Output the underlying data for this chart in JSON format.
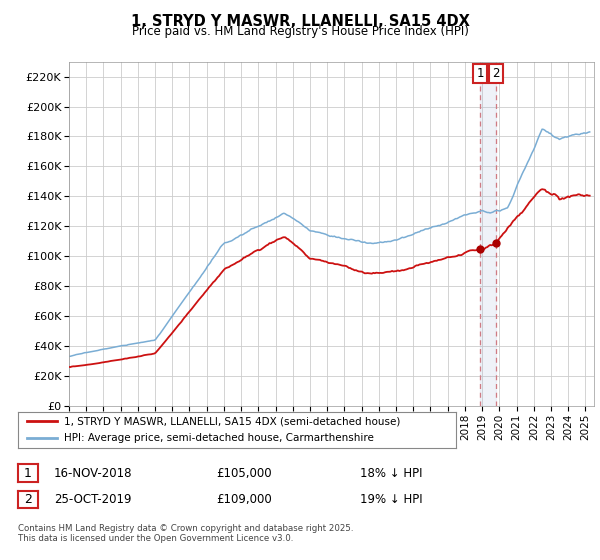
{
  "title": "1, STRYD Y MASWR, LLANELLI, SA15 4DX",
  "subtitle": "Price paid vs. HM Land Registry's House Price Index (HPI)",
  "ylabel_ticks": [
    "£0",
    "£20K",
    "£40K",
    "£60K",
    "£80K",
    "£100K",
    "£120K",
    "£140K",
    "£160K",
    "£180K",
    "£200K",
    "£220K"
  ],
  "ytick_values": [
    0,
    20000,
    40000,
    60000,
    80000,
    100000,
    120000,
    140000,
    160000,
    180000,
    200000,
    220000
  ],
  "ylim": [
    0,
    230000
  ],
  "xlim_start": 1995.0,
  "xlim_end": 2025.5,
  "xtick_years": [
    1995,
    1996,
    1997,
    1998,
    1999,
    2000,
    2001,
    2002,
    2003,
    2004,
    2005,
    2006,
    2007,
    2008,
    2009,
    2010,
    2011,
    2012,
    2013,
    2014,
    2015,
    2016,
    2017,
    2018,
    2019,
    2020,
    2021,
    2022,
    2023,
    2024,
    2025
  ],
  "hpi_color": "#7aadd4",
  "price_color": "#cc1111",
  "marker_color": "#aa0000",
  "vline_color": "#dd6666",
  "span_color": "#ddcccc",
  "annotation_box_color": "#cc2222",
  "background_color": "#ffffff",
  "grid_color": "#cccccc",
  "transaction1_x": 2018.88,
  "transaction1_y": 105000,
  "transaction2_x": 2019.81,
  "transaction2_y": 109000,
  "legend_text1": "1, STRYD Y MASWR, LLANELLI, SA15 4DX (semi-detached house)",
  "legend_text2": "HPI: Average price, semi-detached house, Carmarthenshire",
  "footnote": "Contains HM Land Registry data © Crown copyright and database right 2025.\nThis data is licensed under the Open Government Licence v3.0.",
  "table_row1": [
    "1",
    "16-NOV-2018",
    "£105,000",
    "18% ↓ HPI"
  ],
  "table_row2": [
    "2",
    "25-OCT-2019",
    "£109,000",
    "19% ↓ HPI"
  ]
}
